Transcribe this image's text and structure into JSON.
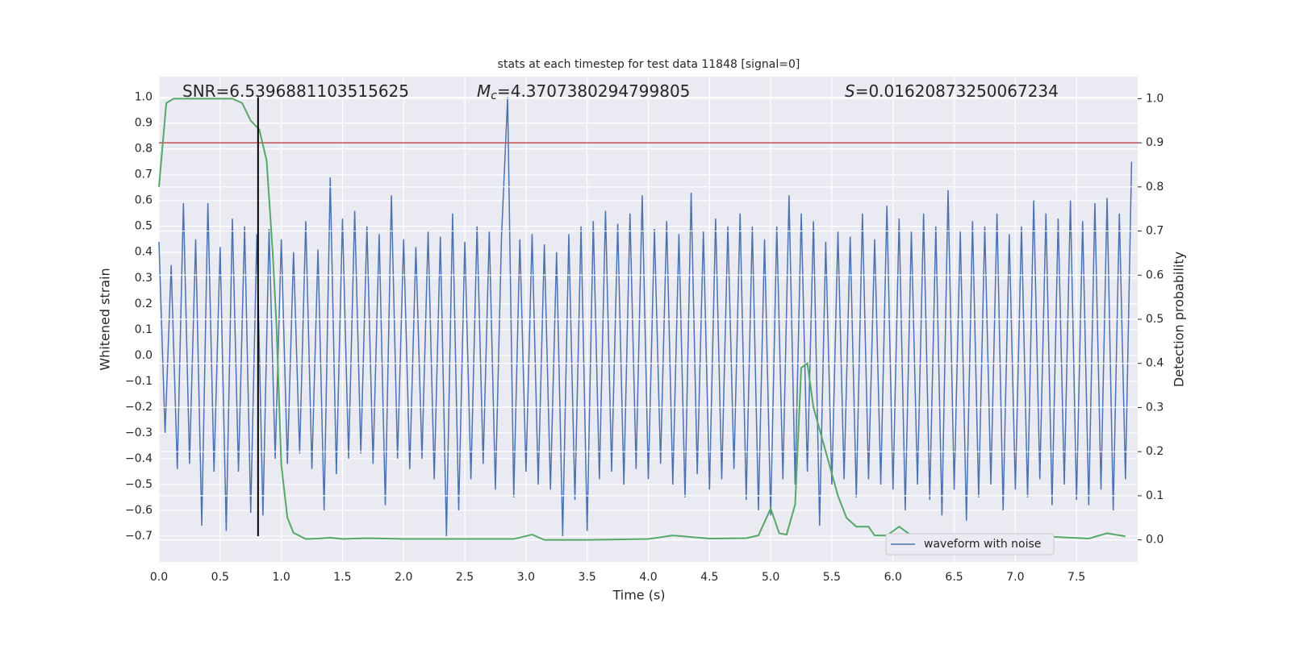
{
  "chart_data": {
    "type": "line",
    "title": "stats at each timestep for test data 11848 [signal=0]",
    "xlabel": "Time (s)",
    "ylabel": "Whitened strain",
    "y2label": "Detection probability",
    "annotations": [
      {
        "text": "SNR=6.5396881103515625"
      },
      {
        "symbol": "M",
        "subscript": "c",
        "text": "=4.3707380294799805"
      },
      {
        "symbol": "S",
        "text": "=0.01620873250067234"
      }
    ],
    "xlim": [
      0,
      8.0
    ],
    "ylim": [
      -0.8,
      1.08
    ],
    "y2lim": [
      -0.05,
      1.05
    ],
    "grid": true,
    "background": "#eaeaf2",
    "legend": "lower right",
    "xticks": [
      {
        "value": 0,
        "label": "0.0"
      },
      {
        "value": 0.5,
        "label": "0.5"
      },
      {
        "value": 1,
        "label": "1.0"
      },
      {
        "value": 1.5,
        "label": "1.5"
      },
      {
        "value": 2,
        "label": "2.0"
      },
      {
        "value": 2.5,
        "label": "2.5"
      },
      {
        "value": 3,
        "label": "3.0"
      },
      {
        "value": 3.5,
        "label": "3.5"
      },
      {
        "value": 4,
        "label": "4.0"
      },
      {
        "value": 4.5,
        "label": "4.5"
      },
      {
        "value": 5,
        "label": "5.0"
      },
      {
        "value": 5.5,
        "label": "5.5"
      },
      {
        "value": 6,
        "label": "6.0"
      },
      {
        "value": 6.5,
        "label": "6.5"
      },
      {
        "value": 7,
        "label": "7.0"
      },
      {
        "value": 7.5,
        "label": "7.5"
      }
    ],
    "yticks": [
      {
        "value": -0.7,
        "label": "−0.7"
      },
      {
        "value": -0.6,
        "label": "−0.6"
      },
      {
        "value": -0.5,
        "label": "−0.5"
      },
      {
        "value": -0.4,
        "label": "−0.4"
      },
      {
        "value": -0.3,
        "label": "−0.3"
      },
      {
        "value": -0.2,
        "label": "−0.2"
      },
      {
        "value": -0.1,
        "label": "−0.1"
      },
      {
        "value": 0,
        "label": "0.0"
      },
      {
        "value": 0.1,
        "label": "0.1"
      },
      {
        "value": 0.2,
        "label": "0.2"
      },
      {
        "value": 0.3,
        "label": "0.3"
      },
      {
        "value": 0.4,
        "label": "0.4"
      },
      {
        "value": 0.5,
        "label": "0.5"
      },
      {
        "value": 0.6,
        "label": "0.6"
      },
      {
        "value": 0.7,
        "label": "0.7"
      },
      {
        "value": 0.8,
        "label": "0.8"
      },
      {
        "value": 0.9,
        "label": "0.9"
      },
      {
        "value": 1,
        "label": "1.0"
      }
    ],
    "y2ticks": [
      {
        "value": 0,
        "label": "0.0"
      },
      {
        "value": 0.1,
        "label": "0.1"
      },
      {
        "value": 0.2,
        "label": "0.2"
      },
      {
        "value": 0.3,
        "label": "0.3"
      },
      {
        "value": 0.4,
        "label": "0.4"
      },
      {
        "value": 0.5,
        "label": "0.5"
      },
      {
        "value": 0.6,
        "label": "0.6"
      },
      {
        "value": 0.7,
        "label": "0.7"
      },
      {
        "value": 0.8,
        "label": "0.8"
      },
      {
        "value": 0.9,
        "label": "0.9"
      },
      {
        "value": 1,
        "label": "1.0"
      }
    ],
    "series": [
      {
        "name": "waveform with noise",
        "color": "#4c72b0",
        "x": [
          0,
          0.05,
          0.1,
          0.15,
          0.2,
          0.25,
          0.3,
          0.35,
          0.4,
          0.45,
          0.5,
          0.55,
          0.6,
          0.65,
          0.7,
          0.75,
          0.8,
          0.85,
          0.9,
          0.95,
          1.0,
          1.05,
          1.1,
          1.15,
          1.2,
          1.25,
          1.3,
          1.35,
          1.4,
          1.45,
          1.5,
          1.55,
          1.6,
          1.65,
          1.7,
          1.75,
          1.8,
          1.85,
          1.9,
          1.95,
          2.0,
          2.05,
          2.1,
          2.15,
          2.2,
          2.25,
          2.3,
          2.35,
          2.4,
          2.45,
          2.5,
          2.55,
          2.6,
          2.65,
          2.7,
          2.75,
          2.8,
          2.85,
          2.9,
          2.95,
          3.0,
          3.05,
          3.1,
          3.15,
          3.2,
          3.25,
          3.3,
          3.35,
          3.4,
          3.45,
          3.5,
          3.55,
          3.6,
          3.65,
          3.7,
          3.75,
          3.8,
          3.85,
          3.9,
          3.95,
          4.0,
          4.05,
          4.1,
          4.15,
          4.2,
          4.25,
          4.3,
          4.35,
          4.4,
          4.45,
          4.5,
          4.55,
          4.6,
          4.65,
          4.7,
          4.75,
          4.8,
          4.85,
          4.9,
          4.95,
          5.0,
          5.05,
          5.1,
          5.15,
          5.2,
          5.25,
          5.3,
          5.35,
          5.4,
          5.45,
          5.5,
          5.55,
          5.6,
          5.65,
          5.7,
          5.75,
          5.8,
          5.85,
          5.9,
          5.95,
          6.0,
          6.05,
          6.1,
          6.15,
          6.2,
          6.25,
          6.3,
          6.35,
          6.4,
          6.45,
          6.5,
          6.55,
          6.6,
          6.65,
          6.7,
          6.75,
          6.8,
          6.85,
          6.9,
          6.95,
          7.0,
          7.05,
          7.1,
          7.15,
          7.2,
          7.25,
          7.3,
          7.35,
          7.4,
          7.45,
          7.5,
          7.55,
          7.6,
          7.65,
          7.7,
          7.75,
          7.8,
          7.85,
          7.9,
          7.95
        ],
        "values": [
          0.44,
          -0.3,
          0.35,
          -0.44,
          0.59,
          -0.42,
          0.45,
          -0.66,
          0.59,
          -0.45,
          0.42,
          -0.68,
          0.53,
          -0.45,
          0.5,
          -0.61,
          0.47,
          -0.62,
          0.49,
          -0.4,
          0.45,
          -0.42,
          0.4,
          -0.38,
          0.52,
          -0.44,
          0.41,
          -0.6,
          0.69,
          -0.46,
          0.53,
          -0.4,
          0.56,
          -0.38,
          0.5,
          -0.42,
          0.47,
          -0.58,
          0.62,
          -0.4,
          0.45,
          -0.44,
          0.42,
          -0.4,
          0.48,
          -0.48,
          0.46,
          -0.7,
          0.55,
          -0.6,
          0.44,
          -0.48,
          0.5,
          -0.42,
          0.48,
          -0.52,
          0.46,
          1.0,
          -0.55,
          0.45,
          -0.45,
          0.47,
          -0.5,
          0.43,
          -0.52,
          0.4,
          -0.7,
          0.47,
          -0.56,
          0.5,
          -0.68,
          0.52,
          -0.48,
          0.56,
          -0.45,
          0.51,
          -0.5,
          0.55,
          -0.44,
          0.62,
          -0.48,
          0.49,
          -0.42,
          0.52,
          -0.5,
          0.47,
          -0.55,
          0.63,
          -0.46,
          0.48,
          -0.52,
          0.53,
          -0.48,
          0.5,
          -0.44,
          0.55,
          -0.56,
          0.5,
          -0.6,
          0.45,
          -0.62,
          0.5,
          -0.48,
          0.62,
          -0.5,
          0.55,
          -0.45,
          0.52,
          -0.66,
          0.44,
          -0.5,
          0.48,
          -0.48,
          0.46,
          -0.55,
          0.55,
          -0.48,
          0.45,
          -0.5,
          0.58,
          -0.52,
          0.53,
          -0.6,
          0.48,
          -0.5,
          0.55,
          -0.56,
          0.5,
          -0.62,
          0.64,
          -0.52,
          0.48,
          -0.64,
          0.52,
          -0.55,
          0.5,
          -0.5,
          0.55,
          -0.6,
          0.47,
          -0.52,
          0.5,
          -0.55,
          0.6,
          -0.48,
          0.55,
          -0.58,
          0.53,
          -0.5,
          0.6,
          -0.56,
          0.52,
          -0.58,
          0.59,
          -0.52,
          0.61,
          -0.6,
          0.55,
          -0.48,
          0.75
        ]
      },
      {
        "axis": "y2",
        "color": "#55a868",
        "x": [
          0,
          0.06,
          0.12,
          0.6,
          0.68,
          0.75,
          0.82,
          0.88,
          0.93,
          0.96,
          1.0,
          1.05,
          1.1,
          1.2,
          1.3,
          1.4,
          1.5,
          1.7,
          2.0,
          2.3,
          2.6,
          2.9,
          3.05,
          3.15,
          3.5,
          4.0,
          4.2,
          4.5,
          4.8,
          4.9,
          5.0,
          5.07,
          5.13,
          5.2,
          5.25,
          5.3,
          5.35,
          5.45,
          5.55,
          5.62,
          5.7,
          5.8,
          5.85,
          5.95,
          6.05,
          6.15,
          6.3,
          7.0,
          7.3,
          7.6,
          7.75,
          7.9
        ],
        "values": [
          0.8,
          0.99,
          1.0,
          1.0,
          0.99,
          0.95,
          0.93,
          0.86,
          0.65,
          0.49,
          0.17,
          0.05,
          0.016,
          0.002,
          0.003,
          0.005,
          0.002,
          0.004,
          0.002,
          0.002,
          0.002,
          0.002,
          0.012,
          0.0,
          0.0,
          0.002,
          0.01,
          0.003,
          0.004,
          0.01,
          0.071,
          0.015,
          0.012,
          0.08,
          0.39,
          0.4,
          0.3,
          0.2,
          0.1,
          0.05,
          0.03,
          0.03,
          0.01,
          0.01,
          0.03,
          0.01,
          0.003,
          0.003,
          0.007,
          0.003,
          0.015,
          0.008
        ]
      }
    ],
    "hlines": [
      {
        "value": 0.9,
        "axis": "y2",
        "color": "#c44e52"
      }
    ],
    "vlines": [
      {
        "x": 0.81,
        "ymin": -0.7,
        "ymax": 1.0,
        "color": "#000000"
      }
    ]
  }
}
